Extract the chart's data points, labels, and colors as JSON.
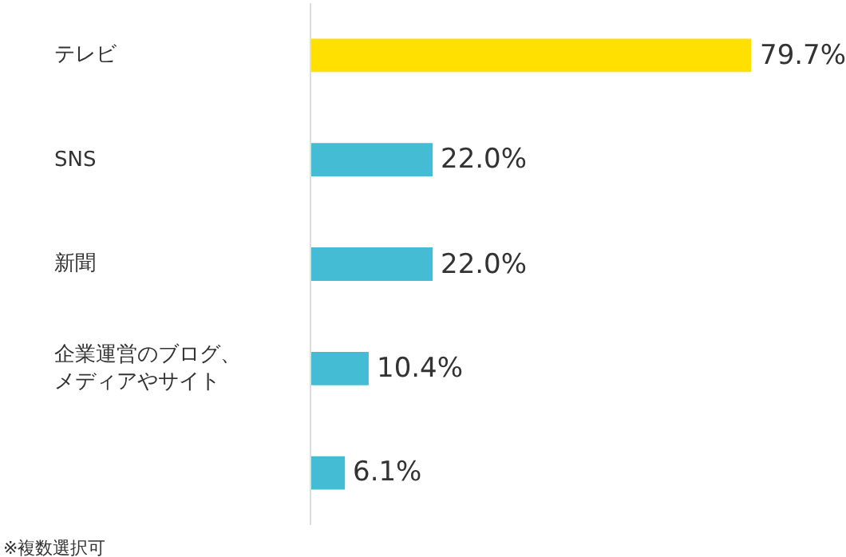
{
  "chart_data": {
    "type": "bar",
    "orientation": "horizontal",
    "categories": [
      "テレビ",
      "SNS",
      "新聞",
      "企業運営のブログ、メディアやサイト",
      null
    ],
    "values": [
      79.7,
      22.0,
      22.0,
      10.4,
      6.1
    ],
    "colors": [
      "#ffe000",
      "#44bdd4",
      "#44bdd4",
      "#44bdd4",
      "#44bdd4"
    ],
    "value_labels": [
      "79.7%",
      "22.0%",
      "22.0%",
      "10.4%",
      "6.1%"
    ],
    "xlim": [
      0,
      96
    ],
    "tick_labels": "y",
    "annotations": [
      "※複数選択可"
    ]
  }
}
